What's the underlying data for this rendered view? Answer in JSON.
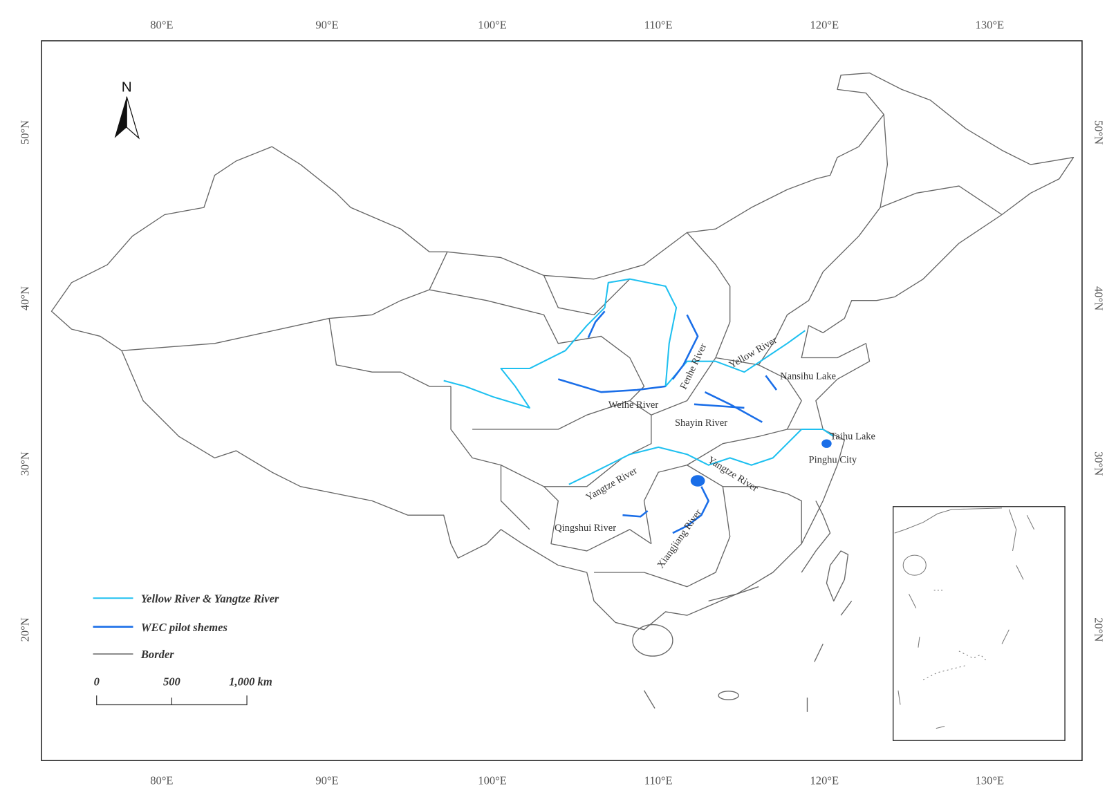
{
  "graticule": {
    "longitude_labels": [
      "80°E",
      "90°E",
      "100°E",
      "110°E",
      "120°E",
      "130°E"
    ],
    "latitude_labels": [
      "50°N",
      "40°N",
      "30°N",
      "20°N"
    ]
  },
  "north_arrow": {
    "label": "N"
  },
  "map_labels": [
    "Yellow River",
    "Fenhe River",
    "Nansihu Lake",
    "Weihe River",
    "Shayin River",
    "Taihu Lake",
    "Pinghu City",
    "Yangtze River",
    "Yangtze River",
    "Qingshui River",
    "Xiangjiang River"
  ],
  "legend": {
    "items": [
      "Yellow River & Yangtze River",
      "WEC pilot shemes",
      "Border"
    ]
  },
  "scale_bar": {
    "labels": [
      "0",
      "500",
      "1,000 km"
    ]
  }
}
